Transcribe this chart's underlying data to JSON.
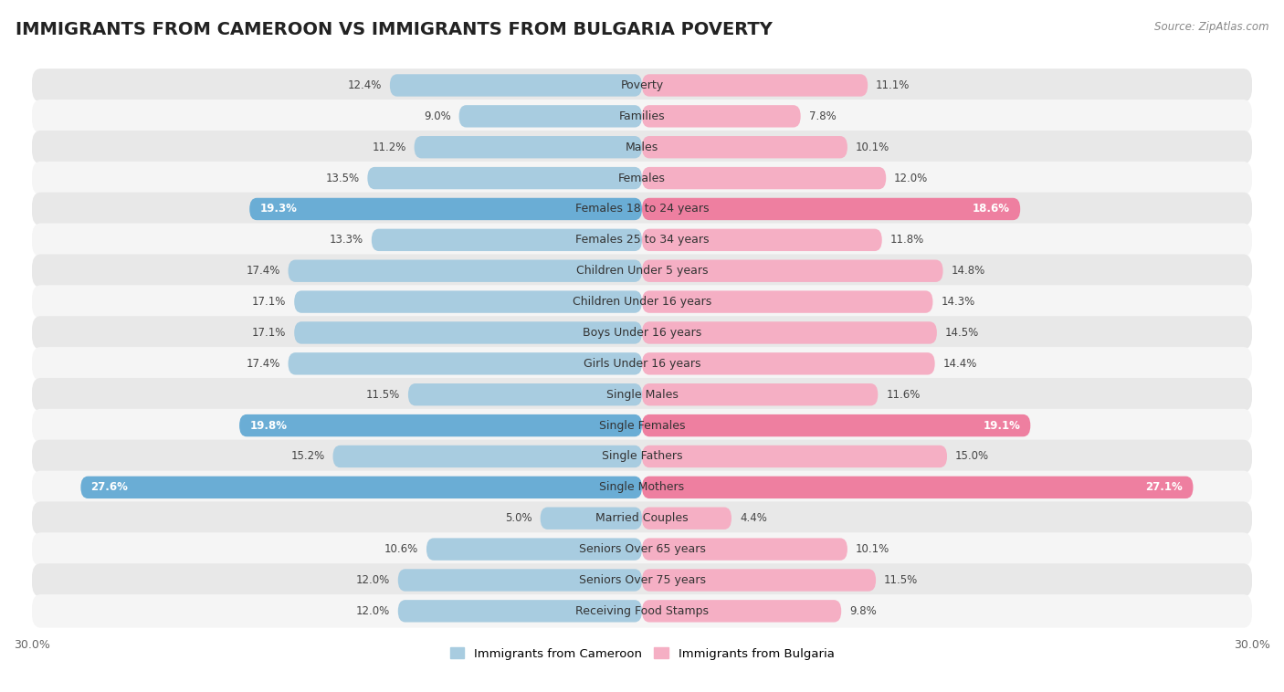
{
  "title": "IMMIGRANTS FROM CAMEROON VS IMMIGRANTS FROM BULGARIA POVERTY",
  "source": "Source: ZipAtlas.com",
  "categories": [
    "Poverty",
    "Families",
    "Males",
    "Females",
    "Females 18 to 24 years",
    "Females 25 to 34 years",
    "Children Under 5 years",
    "Children Under 16 years",
    "Boys Under 16 years",
    "Girls Under 16 years",
    "Single Males",
    "Single Females",
    "Single Fathers",
    "Single Mothers",
    "Married Couples",
    "Seniors Over 65 years",
    "Seniors Over 75 years",
    "Receiving Food Stamps"
  ],
  "cameroon_values": [
    12.4,
    9.0,
    11.2,
    13.5,
    19.3,
    13.3,
    17.4,
    17.1,
    17.1,
    17.4,
    11.5,
    19.8,
    15.2,
    27.6,
    5.0,
    10.6,
    12.0,
    12.0
  ],
  "bulgaria_values": [
    11.1,
    7.8,
    10.1,
    12.0,
    18.6,
    11.8,
    14.8,
    14.3,
    14.5,
    14.4,
    11.6,
    19.1,
    15.0,
    27.1,
    4.4,
    10.1,
    11.5,
    9.8
  ],
  "cameroon_color": "#a8cce0",
  "bulgaria_color": "#f5afc4",
  "cameroon_highlight_color": "#6aadd5",
  "bulgaria_highlight_color": "#ee7fa0",
  "highlight_rows": [
    4,
    11,
    13
  ],
  "bg_row_color": "#e8e8e8",
  "bg_row_color2": "#f5f5f5",
  "background_color": "#ffffff",
  "xlim": 30.0,
  "legend_label_cameroon": "Immigrants from Cameroon",
  "legend_label_bulgaria": "Immigrants from Bulgaria",
  "bar_height": 0.72,
  "title_fontsize": 14,
  "label_fontsize": 9,
  "value_fontsize": 8.5,
  "axis_tick_fontsize": 9
}
